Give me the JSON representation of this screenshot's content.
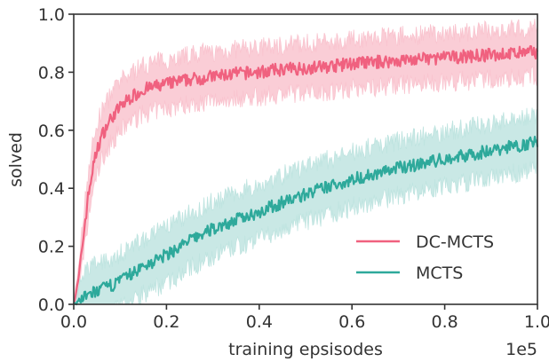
{
  "chart_data": {
    "type": "line",
    "title": "",
    "xlabel": "training epsisodes",
    "ylabel": "solved",
    "x_offset_label": "1e5",
    "xlim": [
      0.0,
      1.0
    ],
    "ylim": [
      0.0,
      1.0
    ],
    "xticks": [
      "0.0",
      "0.2",
      "0.4",
      "0.6",
      "0.8",
      "1.0"
    ],
    "yticks": [
      "0.0",
      "0.2",
      "0.4",
      "0.6",
      "0.8",
      "1.0"
    ],
    "grid": false,
    "legend_position": "lower-right",
    "x": [
      0.0,
      0.01,
      0.02,
      0.03,
      0.04,
      0.05,
      0.06,
      0.08,
      0.1,
      0.12,
      0.15,
      0.2,
      0.25,
      0.3,
      0.35,
      0.4,
      0.45,
      0.5,
      0.55,
      0.6,
      0.65,
      0.7,
      0.75,
      0.8,
      0.85,
      0.9,
      0.95,
      1.0
    ],
    "series": [
      {
        "name": "DC-MCTS",
        "color": "#f0617f",
        "band_color": "#f9c4cf",
        "values": [
          0.0,
          0.08,
          0.22,
          0.36,
          0.46,
          0.53,
          0.58,
          0.64,
          0.68,
          0.71,
          0.74,
          0.76,
          0.775,
          0.785,
          0.795,
          0.8,
          0.81,
          0.815,
          0.82,
          0.83,
          0.835,
          0.84,
          0.845,
          0.85,
          0.855,
          0.86,
          0.865,
          0.87
        ],
        "band": 0.07
      },
      {
        "name": "MCTS",
        "color": "#2ea99b",
        "band_color": "#bfe4e0",
        "values": [
          0.0,
          0.01,
          0.02,
          0.03,
          0.04,
          0.045,
          0.05,
          0.065,
          0.08,
          0.1,
          0.13,
          0.17,
          0.22,
          0.26,
          0.29,
          0.32,
          0.35,
          0.38,
          0.405,
          0.43,
          0.45,
          0.47,
          0.485,
          0.5,
          0.515,
          0.53,
          0.545,
          0.56
        ],
        "band": 0.08
      }
    ]
  }
}
